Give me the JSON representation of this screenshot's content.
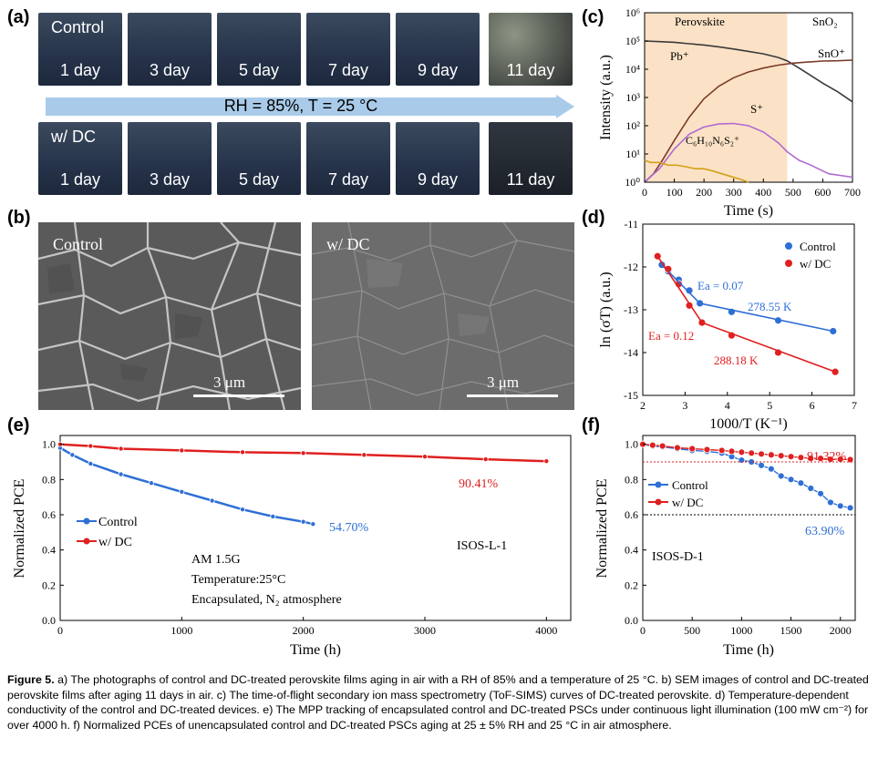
{
  "panel_labels": {
    "a": "(a)",
    "b": "(b)",
    "c": "(c)",
    "d": "(d)",
    "e": "(e)",
    "f": "(f)"
  },
  "panel_a": {
    "row_control_tag": "Control",
    "row_dc_tag": "w/ DC",
    "days": [
      "1 day",
      "3 day",
      "5 day",
      "7 day",
      "9 day",
      "11 day"
    ],
    "condition": "RH = 85%, T = 25 °C",
    "arrow_color": "#a9cbe9"
  },
  "panel_b": {
    "left_tag": "Control",
    "right_tag": "w/ DC",
    "scale_bar": "3 μm"
  },
  "chart_data": [
    {
      "panel": "c",
      "type": "line",
      "xlabel": "Time (s)",
      "ylabel": "Intensity (a.u.)",
      "xlim": [
        0,
        700
      ],
      "ylim_log10": [
        0,
        6
      ],
      "yscale": "log",
      "xticks": [
        "0",
        "100",
        "200",
        "300",
        "400",
        "500",
        "600",
        "700"
      ],
      "yticks": [
        "10⁰",
        "10¹",
        "10²",
        "10³",
        "10⁴",
        "10⁵",
        "10⁶"
      ],
      "region_labels": {
        "perovskite": "Perovskite",
        "sno2": "SnO₂"
      },
      "perovskite_region": [
        0,
        480
      ],
      "series": [
        {
          "name": "Pb⁺",
          "color": "#3a3a3a",
          "x": [
            0,
            50,
            100,
            150,
            200,
            250,
            300,
            350,
            400,
            450,
            480,
            520,
            560,
            600,
            650,
            700
          ],
          "y": [
            100000,
            95000,
            90000,
            80000,
            72000,
            62000,
            52000,
            43000,
            35000,
            26000,
            20000,
            11000,
            6000,
            3200,
            1600,
            700
          ]
        },
        {
          "name": "SnO⁺",
          "color": "#7a3b2a",
          "x": [
            0,
            30,
            60,
            100,
            150,
            200,
            250,
            300,
            350,
            400,
            450,
            500,
            550,
            600,
            650,
            700
          ],
          "y": [
            1,
            2,
            6,
            30,
            200,
            900,
            2500,
            5000,
            8000,
            11000,
            14000,
            16500,
            18000,
            19500,
            20000,
            21000
          ]
        },
        {
          "name": "S⁺",
          "color": "#b06ad0",
          "x": [
            0,
            50,
            100,
            150,
            200,
            250,
            300,
            350,
            400,
            450,
            480,
            520,
            560,
            620,
            700
          ],
          "y": [
            1,
            3,
            15,
            50,
            90,
            115,
            120,
            100,
            60,
            25,
            12,
            6,
            4,
            2,
            1.5
          ]
        },
        {
          "name": "C₆H₁₀N₆S₂⁺",
          "color": "#d4a017",
          "x": [
            0,
            20,
            50,
            80,
            110,
            140,
            170,
            200,
            230,
            260,
            290,
            320,
            350
          ],
          "y": [
            6,
            5,
            5,
            4,
            4,
            3.5,
            3,
            3,
            2.5,
            2,
            1.6,
            1.3,
            1
          ]
        }
      ]
    },
    {
      "panel": "d",
      "type": "scatter",
      "xlabel": "1000/T (K⁻¹)",
      "ylabel": "ln (σT) (a.u.)",
      "xlim": [
        2,
        7
      ],
      "ylim": [
        -15,
        -11
      ],
      "xticks": [
        "2",
        "3",
        "4",
        "5",
        "6",
        "7"
      ],
      "yticks": [
        "-11",
        "-12",
        "-13",
        "-14",
        "-15"
      ],
      "legend_position": "top-right",
      "annotations": {
        "ea_control": "Ea = 0.07",
        "temp_control": "278.55 K",
        "ea_dc": "Ea = 0.12",
        "temp_dc": "288.18 K"
      },
      "series": [
        {
          "name": "Control",
          "color": "#2e6fd6",
          "x": [
            2.45,
            2.6,
            2.85,
            3.1,
            3.35,
            4.1,
            5.2,
            6.5
          ],
          "y": [
            -11.95,
            -12.1,
            -12.3,
            -12.55,
            -12.85,
            -13.05,
            -13.25,
            -13.5
          ]
        },
        {
          "name": "w/ DC",
          "color": "#e02020",
          "x": [
            2.35,
            2.6,
            2.85,
            3.1,
            3.4,
            4.1,
            5.2,
            6.55
          ],
          "y": [
            -11.75,
            -12.05,
            -12.4,
            -12.9,
            -13.3,
            -13.6,
            -14.0,
            -14.45
          ]
        }
      ]
    },
    {
      "panel": "e",
      "type": "line",
      "xlabel": "Time (h)",
      "ylabel": "Normalized PCE",
      "xlim": [
        0,
        4200
      ],
      "ylim": [
        0,
        1.05
      ],
      "xticks": [
        "0",
        "1000",
        "2000",
        "3000",
        "4000"
      ],
      "yticks": [
        "0.0",
        "0.2",
        "0.4",
        "0.6",
        "0.8",
        "1.0"
      ],
      "legend_position": "middle-left",
      "annotations": {
        "control_end": "54.70%",
        "dc_end": "90.41%",
        "protocol": "ISOS-L-1",
        "cond1": "AM 1.5G",
        "cond2": "Temperature:25°C",
        "cond3": "Encapsulated, N₂ atmosphere"
      },
      "series": [
        {
          "name": "Control",
          "color": "#2e6fd6",
          "x": [
            0,
            100,
            250,
            500,
            750,
            1000,
            1250,
            1500,
            1750,
            2000,
            2080
          ],
          "y": [
            0.98,
            0.94,
            0.89,
            0.83,
            0.78,
            0.73,
            0.68,
            0.63,
            0.59,
            0.56,
            0.547
          ]
        },
        {
          "name": "w/ DC",
          "color": "#e02020",
          "x": [
            0,
            250,
            500,
            1000,
            1500,
            2000,
            2500,
            3000,
            3500,
            4000
          ],
          "y": [
            1.0,
            0.99,
            0.975,
            0.965,
            0.955,
            0.95,
            0.94,
            0.93,
            0.915,
            0.904
          ]
        }
      ]
    },
    {
      "panel": "f",
      "type": "line",
      "xlabel": "Time (h)",
      "ylabel": "Normalized PCE",
      "xlim": [
        0,
        2150
      ],
      "ylim": [
        0,
        1.05
      ],
      "xticks": [
        "0",
        "500",
        "1000",
        "1500",
        "2000"
      ],
      "yticks": [
        "0.0",
        "0.2",
        "0.4",
        "0.6",
        "0.8",
        "1.0"
      ],
      "legend_position": "middle-left",
      "annotations": {
        "control_end": "63.90%",
        "dc_end": "91.32%",
        "protocol": "ISOS-D-1"
      },
      "series": [
        {
          "name": "Control",
          "color": "#2e6fd6",
          "x": [
            0,
            100,
            200,
            350,
            500,
            650,
            800,
            900,
            1000,
            1100,
            1200,
            1300,
            1400,
            1500,
            1600,
            1700,
            1800,
            1900,
            2000,
            2100
          ],
          "y": [
            1.0,
            0.99,
            0.985,
            0.975,
            0.965,
            0.96,
            0.95,
            0.93,
            0.91,
            0.9,
            0.88,
            0.86,
            0.82,
            0.8,
            0.78,
            0.75,
            0.72,
            0.67,
            0.65,
            0.639
          ]
        },
        {
          "name": "w/ DC",
          "color": "#e02020",
          "x": [
            0,
            100,
            200,
            350,
            500,
            650,
            800,
            900,
            1000,
            1100,
            1200,
            1300,
            1400,
            1500,
            1600,
            1700,
            1800,
            1900,
            2000,
            2100
          ],
          "y": [
            1.0,
            0.995,
            0.99,
            0.98,
            0.975,
            0.97,
            0.965,
            0.96,
            0.955,
            0.95,
            0.945,
            0.94,
            0.935,
            0.93,
            0.925,
            0.92,
            0.92,
            0.915,
            0.915,
            0.913
          ]
        }
      ]
    }
  ],
  "caption": {
    "label": "Figure 5.",
    "text": "a) The photographs of control and DC-treated perovskite films aging in air with a RH of 85% and a temperature of 25 °C. b) SEM images of control and DC-treated perovskite films after aging 11 days in air. c) The time-of-flight secondary ion mass spectrometry (ToF-SIMS) curves of DC-treated perovskite. d) Temperature-dependent conductivity of the control and DC-treated devices. e) The MPP tracking of encapsulated control and DC-treated PSCs under continuous light illumination (100 mW cm⁻²) for over 4000 h. f) Normalized PCEs of unencapsulated control and DC-treated PSCs aging at 25 ± 5% RH and 25 °C in air atmosphere."
  }
}
